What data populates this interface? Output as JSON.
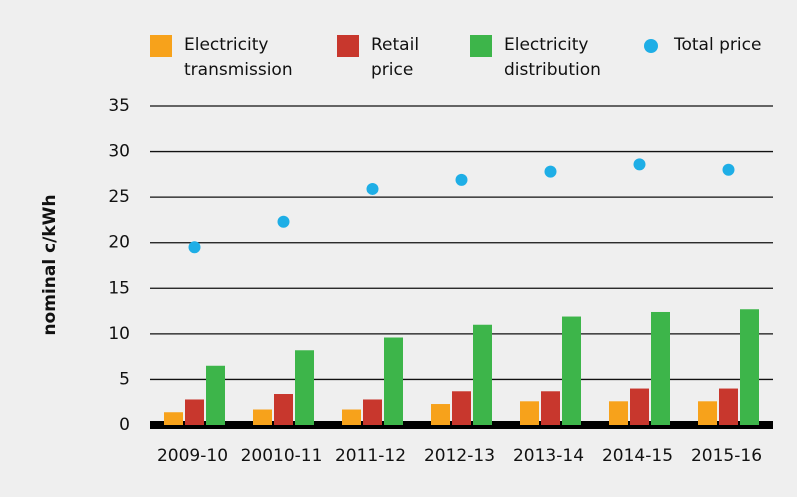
{
  "chart_data": {
    "type": "bar",
    "y_label": "nominal c/kWh",
    "categories": [
      "2009-10",
      "20010-11",
      "2011-12",
      "2012-13",
      "2013-14",
      "2014-15",
      "2015-16"
    ],
    "series": [
      {
        "name": "Electricity transmission",
        "type": "bar",
        "color": "#f7a21b",
        "values": [
          1.4,
          1.7,
          1.7,
          2.3,
          2.6,
          2.6,
          2.6
        ]
      },
      {
        "name": "Retail price",
        "type": "bar",
        "color": "#c8372d",
        "values": [
          2.8,
          3.4,
          2.8,
          3.7,
          3.7,
          4.0,
          4.0
        ]
      },
      {
        "name": "Electricity distribution",
        "type": "bar",
        "color": "#3db54a",
        "values": [
          6.5,
          8.2,
          9.6,
          11.0,
          11.9,
          12.4,
          12.7
        ]
      },
      {
        "name": "Total price",
        "type": "scatter",
        "color": "#1eaee6",
        "values": [
          19.5,
          22.3,
          25.9,
          26.9,
          27.8,
          28.6,
          28.0
        ]
      }
    ],
    "ylim": [
      0,
      35
    ],
    "yticks": [
      0,
      5,
      10,
      15,
      20,
      25,
      30,
      35
    ],
    "grid": true
  }
}
